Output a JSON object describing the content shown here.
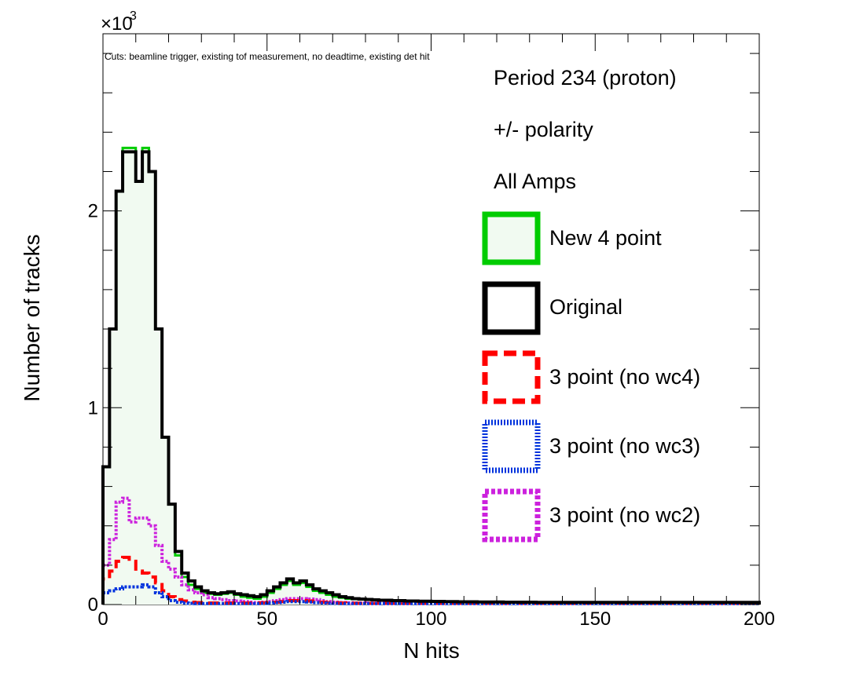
{
  "chart_data": {
    "type": "histogram",
    "xlabel": "N hits",
    "ylabel": "Number of tracks",
    "y_scale_factor_label": {
      "base": "×10",
      "exponent": "3"
    },
    "xlim": [
      0,
      200
    ],
    "ylim": [
      0,
      2.9
    ],
    "x_ticks": [
      "0",
      "50",
      "100",
      "150",
      "200"
    ],
    "y_ticks": [
      {
        "value": 0,
        "label": "0"
      },
      {
        "value": 1,
        "label": "1"
      },
      {
        "value": 2,
        "label": "2"
      }
    ],
    "cuts_note": "Cuts: beamline trigger, existing tof measurement, no deadtime, existing det hit",
    "legend_header": [
      "Period 234 (proton)",
      "+/- polarity",
      "All Amps"
    ],
    "bin_width": 2,
    "series": [
      {
        "name": "New 4 point",
        "color": "#00cc00",
        "fill": "#f1faf1",
        "line_style": "solid",
        "values": [
          0.7,
          1.4,
          2.1,
          2.32,
          2.32,
          2.15,
          2.32,
          2.2,
          1.4,
          0.85,
          0.51,
          0.25,
          0.14,
          0.1,
          0.08,
          0.06,
          0.055,
          0.05,
          0.055,
          0.06,
          0.05,
          0.04,
          0.035,
          0.03,
          0.04,
          0.06,
          0.08,
          0.1,
          0.12,
          0.1,
          0.11,
          0.09,
          0.07,
          0.06,
          0.05,
          0.04,
          0.035,
          0.03,
          0.028,
          0.026,
          0.024,
          0.022,
          0.02,
          0.02,
          0.018,
          0.018,
          0.016,
          0.016,
          0.016,
          0.015,
          0.015,
          0.014,
          0.014,
          0.014,
          0.013,
          0.013,
          0.013,
          0.012,
          0.012,
          0.012,
          0.012,
          0.011,
          0.011,
          0.011,
          0.011,
          0.011,
          0.01,
          0.01,
          0.01,
          0.01,
          0.01,
          0.01,
          0.01,
          0.01,
          0.01,
          0.01,
          0.01,
          0.01,
          0.01,
          0.01,
          0.01,
          0.01,
          0.01,
          0.01,
          0.01,
          0.01,
          0.01,
          0.01,
          0.01,
          0.01,
          0.01,
          0.01,
          0.01,
          0.01,
          0.01,
          0.01,
          0.01,
          0.01,
          0.01,
          0.01
        ]
      },
      {
        "name": "Original",
        "color": "#000000",
        "line_style": "solid",
        "values": [
          0.7,
          1.4,
          2.1,
          2.3,
          2.3,
          2.15,
          2.3,
          2.2,
          1.4,
          0.85,
          0.51,
          0.27,
          0.16,
          0.12,
          0.09,
          0.07,
          0.06,
          0.055,
          0.06,
          0.065,
          0.055,
          0.05,
          0.045,
          0.04,
          0.05,
          0.07,
          0.09,
          0.11,
          0.13,
          0.11,
          0.12,
          0.1,
          0.08,
          0.07,
          0.06,
          0.05,
          0.04,
          0.035,
          0.03,
          0.028,
          0.026,
          0.024,
          0.022,
          0.022,
          0.02,
          0.02,
          0.018,
          0.018,
          0.017,
          0.017,
          0.016,
          0.016,
          0.015,
          0.015,
          0.014,
          0.014,
          0.014,
          0.013,
          0.013,
          0.013,
          0.013,
          0.012,
          0.012,
          0.012,
          0.012,
          0.012,
          0.011,
          0.011,
          0.011,
          0.011,
          0.011,
          0.011,
          0.011,
          0.011,
          0.011,
          0.011,
          0.011,
          0.011,
          0.011,
          0.011,
          0.011,
          0.011,
          0.011,
          0.011,
          0.011,
          0.011,
          0.011,
          0.011,
          0.011,
          0.011,
          0.011,
          0.011,
          0.011,
          0.011,
          0.011,
          0.011,
          0.011,
          0.011,
          0.011,
          0.011
        ]
      },
      {
        "name": "3 point (no wc4)",
        "color": "#ff0000",
        "line_style": "dashed",
        "values": [
          0.13,
          0.17,
          0.22,
          0.24,
          0.22,
          0.17,
          0.16,
          0.14,
          0.11,
          0.07,
          0.04,
          0.025,
          0.018,
          0.012,
          0.01,
          0.008,
          0.008,
          0.008,
          0.008,
          0.008,
          0.008,
          0.008,
          0.008,
          0.008,
          0.009,
          0.01,
          0.012,
          0.015,
          0.02,
          0.02,
          0.02,
          0.018,
          0.015,
          0.012,
          0.01,
          0.009,
          0.008,
          0.007,
          0.007,
          0.006,
          0.006,
          0.006,
          0.006,
          0.006,
          0.006,
          0.006,
          0.006,
          0.006,
          0.006,
          0.006,
          0.006,
          0.006,
          0.006,
          0.006,
          0.006,
          0.006,
          0.006,
          0.006,
          0.006,
          0.006,
          0.006,
          0.006,
          0.006,
          0.006,
          0.006,
          0.006,
          0.006,
          0.006,
          0.006,
          0.006,
          0.006,
          0.006,
          0.006,
          0.006,
          0.006,
          0.006,
          0.006,
          0.006,
          0.006,
          0.006,
          0.006,
          0.006,
          0.006,
          0.006,
          0.006,
          0.006,
          0.006,
          0.006,
          0.006,
          0.006,
          0.006,
          0.006,
          0.006,
          0.006,
          0.006,
          0.006,
          0.006,
          0.006,
          0.006,
          0.006
        ]
      },
      {
        "name": "3 point (no wc3)",
        "color": "#0033dd",
        "line_style": "dotted",
        "values": [
          0.06,
          0.07,
          0.08,
          0.09,
          0.09,
          0.09,
          0.1,
          0.09,
          0.06,
          0.04,
          0.02,
          0.012,
          0.008,
          0.006,
          0.005,
          0.005,
          0.005,
          0.005,
          0.005,
          0.005,
          0.005,
          0.005,
          0.005,
          0.005,
          0.006,
          0.008,
          0.01,
          0.012,
          0.015,
          0.015,
          0.015,
          0.013,
          0.01,
          0.008,
          0.007,
          0.006,
          0.005,
          0.005,
          0.005,
          0.005,
          0.005,
          0.005,
          0.005,
          0.005,
          0.005,
          0.005,
          0.005,
          0.005,
          0.005,
          0.005,
          0.005,
          0.005,
          0.005,
          0.005,
          0.005,
          0.005,
          0.005,
          0.005,
          0.005,
          0.005,
          0.005,
          0.005,
          0.005,
          0.005,
          0.005,
          0.005,
          0.005,
          0.005,
          0.005,
          0.005,
          0.005,
          0.005,
          0.005,
          0.005,
          0.005,
          0.005,
          0.005,
          0.005,
          0.005,
          0.005,
          0.005,
          0.005,
          0.005,
          0.005,
          0.005,
          0.005,
          0.005,
          0.005,
          0.005,
          0.005,
          0.005,
          0.005,
          0.005,
          0.005,
          0.005,
          0.005,
          0.005,
          0.005,
          0.005,
          0.005
        ]
      },
      {
        "name": "3 point (no wc2)",
        "color": "#cc22dd",
        "line_style": "dotted",
        "values": [
          0.2,
          0.33,
          0.52,
          0.54,
          0.42,
          0.44,
          0.44,
          0.4,
          0.3,
          0.22,
          0.18,
          0.14,
          0.1,
          0.075,
          0.06,
          0.05,
          0.035,
          0.03,
          0.025,
          0.02,
          0.018,
          0.015,
          0.012,
          0.01,
          0.012,
          0.015,
          0.02,
          0.025,
          0.03,
          0.03,
          0.03,
          0.028,
          0.025,
          0.02,
          0.015,
          0.012,
          0.01,
          0.009,
          0.008,
          0.008,
          0.007,
          0.007,
          0.007,
          0.007,
          0.007,
          0.007,
          0.007,
          0.007,
          0.007,
          0.007,
          0.007,
          0.007,
          0.007,
          0.007,
          0.007,
          0.007,
          0.007,
          0.007,
          0.007,
          0.007,
          0.007,
          0.007,
          0.007,
          0.007,
          0.007,
          0.007,
          0.007,
          0.007,
          0.007,
          0.007,
          0.007,
          0.007,
          0.007,
          0.007,
          0.007,
          0.007,
          0.007,
          0.007,
          0.007,
          0.007,
          0.007,
          0.007,
          0.007,
          0.007,
          0.007,
          0.007,
          0.007,
          0.007,
          0.007,
          0.007,
          0.007,
          0.007,
          0.007,
          0.007,
          0.007,
          0.007,
          0.007,
          0.007,
          0.007,
          0.007
        ]
      }
    ],
    "legend": {
      "placement": "right"
    }
  }
}
